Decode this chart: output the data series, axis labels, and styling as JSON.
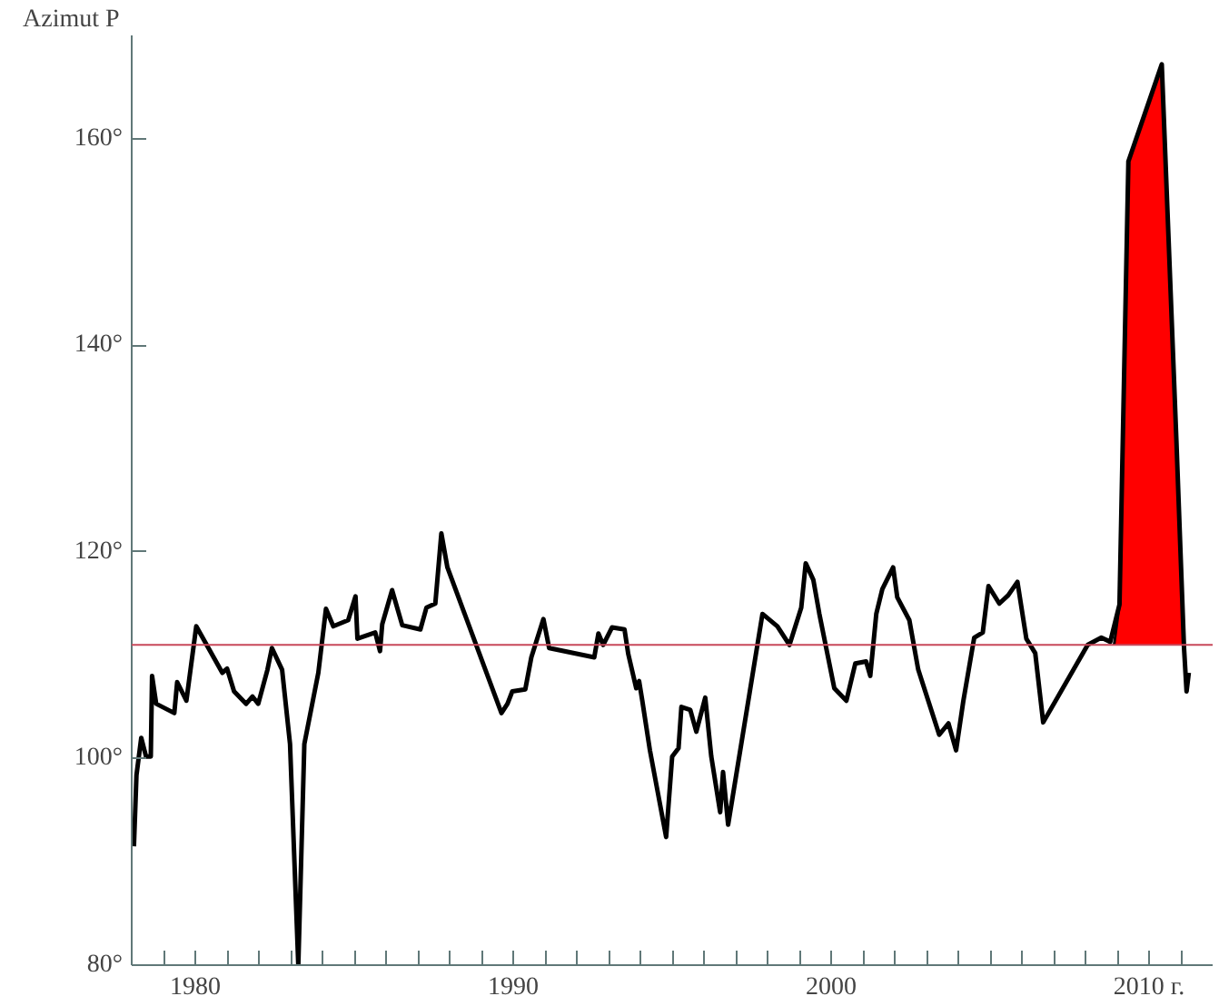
{
  "chart_data": {
    "type": "line",
    "ylabel": "Azimut P",
    "xlim": [
      1978,
      2012
    ],
    "ylim": [
      80,
      170
    ],
    "xticks": [
      {
        "value": 1979,
        "label": null
      },
      {
        "value": 1980,
        "label": "1980"
      },
      {
        "value": 1981,
        "label": null
      },
      {
        "value": 1982,
        "label": null
      },
      {
        "value": 1983,
        "label": null
      },
      {
        "value": 1984,
        "label": null
      },
      {
        "value": 1985,
        "label": null
      },
      {
        "value": 1986,
        "label": null
      },
      {
        "value": 1987,
        "label": null
      },
      {
        "value": 1988,
        "label": null
      },
      {
        "value": 1989,
        "label": null
      },
      {
        "value": 1990,
        "label": "1990"
      },
      {
        "value": 1991,
        "label": null
      },
      {
        "value": 1992,
        "label": null
      },
      {
        "value": 1993,
        "label": null
      },
      {
        "value": 1994,
        "label": null
      },
      {
        "value": 1995,
        "label": null
      },
      {
        "value": 1996,
        "label": null
      },
      {
        "value": 1997,
        "label": null
      },
      {
        "value": 1998,
        "label": null
      },
      {
        "value": 1999,
        "label": null
      },
      {
        "value": 2000,
        "label": "2000"
      },
      {
        "value": 2001,
        "label": null
      },
      {
        "value": 2002,
        "label": null
      },
      {
        "value": 2003,
        "label": null
      },
      {
        "value": 2004,
        "label": null
      },
      {
        "value": 2005,
        "label": null
      },
      {
        "value": 2006,
        "label": null
      },
      {
        "value": 2007,
        "label": null
      },
      {
        "value": 2008,
        "label": null
      },
      {
        "value": 2009,
        "label": null
      },
      {
        "value": 2010,
        "label": "2010 г."
      },
      {
        "value": 2011,
        "label": null
      }
    ],
    "yticks": [
      {
        "value": 80,
        "label": "80°"
      },
      {
        "value": 100,
        "label": "100°"
      },
      {
        "value": 120,
        "label": "120°"
      },
      {
        "value": 140,
        "label": "140°"
      },
      {
        "value": 160,
        "label": "160°"
      }
    ],
    "grid": false,
    "line_style": "solid",
    "marker": "none",
    "ref_lines": [
      {
        "axis": "y",
        "value": 111,
        "color": "#c8485a"
      }
    ],
    "series": [
      {
        "type": "area",
        "color": "#ff0000",
        "x": [
          2008.9,
          2009.07,
          2009.35,
          2010.4,
          2011.1
        ],
        "values": [
          111,
          114.9,
          157.8,
          167.2,
          111
        ]
      },
      {
        "color": "#000000",
        "x": [
          1978.07,
          1978.15,
          1978.3,
          1978.45,
          1978.6,
          1978.64,
          1978.77,
          1979.34,
          1979.43,
          1979.72,
          1980.03,
          1980.85,
          1981.0,
          1981.22,
          1981.6,
          1981.8,
          1981.98,
          1982.27,
          1982.41,
          1982.73,
          1982.98,
          1983.24,
          1983.43,
          1983.87,
          1984.11,
          1984.34,
          1984.81,
          1985.04,
          1985.1,
          1985.66,
          1985.81,
          1985.88,
          1986.19,
          1986.51,
          1987.08,
          1987.27,
          1987.55,
          1987.74,
          1987.93,
          1989.63,
          1989.82,
          1989.97,
          1990.38,
          1990.57,
          1990.95,
          1991.13,
          1992.55,
          1992.68,
          1992.83,
          1993.11,
          1993.5,
          1993.62,
          1993.87,
          1993.96,
          1994.06,
          1994.3,
          1994.81,
          1995.0,
          1995.2,
          1995.29,
          1995.57,
          1995.76,
          1996.04,
          1996.23,
          1996.51,
          1996.6,
          1996.76,
          1997.84,
          1998.31,
          1998.69,
          1999.06,
          1999.2,
          1999.44,
          1999.63,
          2000.1,
          2000.48,
          2000.76,
          2001.1,
          2001.23,
          2001.42,
          2001.61,
          2001.95,
          2002.08,
          2002.46,
          2002.74,
          2003.4,
          2003.69,
          2003.93,
          2004.16,
          2004.5,
          2004.77,
          2004.95,
          2005.29,
          2005.57,
          2005.86,
          2006.14,
          2006.42,
          2006.67,
          2008.07,
          2008.5,
          2008.78,
          2009.07,
          2009.35,
          2010.4,
          2010.86,
          2011.1,
          2011.18,
          2011.25
        ],
        "values": [
          91.5,
          98.4,
          102,
          100.2,
          100.2,
          108,
          105.3,
          104.4,
          107.4,
          105.6,
          112.8,
          108.3,
          108.7,
          106.5,
          105.3,
          106,
          105.3,
          108.6,
          110.7,
          108.6,
          101.4,
          80,
          101.4,
          108.3,
          114.5,
          112.8,
          113.4,
          115.7,
          111.6,
          112.2,
          110.4,
          113,
          116.3,
          112.9,
          112.5,
          114.6,
          115,
          121.8,
          118.5,
          104.4,
          105.3,
          106.5,
          106.7,
          109.8,
          113.5,
          110.7,
          109.8,
          112.1,
          111,
          112.7,
          112.5,
          110.1,
          106.8,
          107.5,
          105.6,
          100.8,
          92.4,
          100.2,
          101,
          105,
          104.7,
          102.6,
          105.9,
          100.2,
          94.8,
          98.7,
          93.6,
          114,
          112.8,
          111,
          114.6,
          118.9,
          117.3,
          114,
          106.8,
          105.6,
          109.2,
          109.4,
          108,
          114,
          116.4,
          118.5,
          115.6,
          113.4,
          108.6,
          102.3,
          103.4,
          100.8,
          105.6,
          111.7,
          112.2,
          116.7,
          115,
          115.8,
          117.1,
          111.6,
          110.2,
          103.5,
          111,
          111.7,
          111.3,
          114.9,
          157.8,
          167.2,
          130.8,
          110.7,
          106.5,
          108.3
        ]
      }
    ]
  }
}
